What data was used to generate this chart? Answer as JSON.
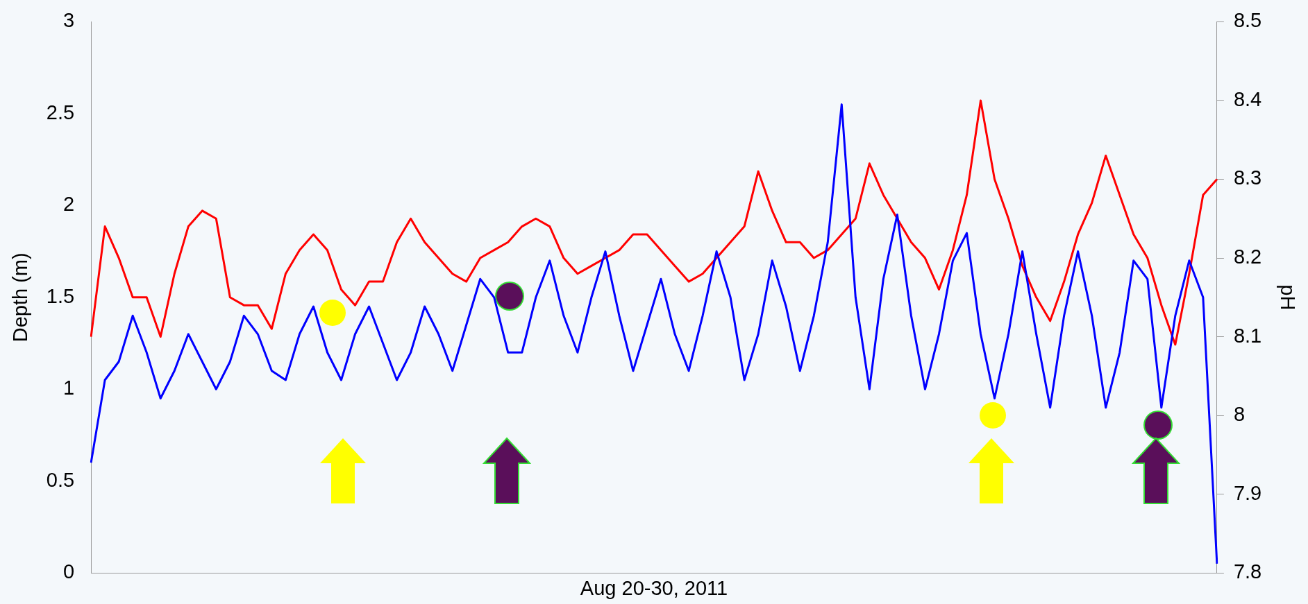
{
  "chart_data": {
    "type": "line",
    "xlabel": "Aug 20-30, 2011",
    "ylabel": "Depth (m)",
    "y2label": "pH",
    "categories": [
      null,
      null,
      null,
      null,
      null,
      null,
      null,
      null,
      null,
      null,
      null,
      null,
      null,
      null,
      null,
      null,
      null,
      null,
      null,
      null,
      null,
      null,
      null,
      null,
      null,
      null,
      null,
      null,
      null,
      null,
      null,
      null,
      null,
      null,
      null,
      null,
      null,
      null,
      null,
      null,
      null,
      null,
      null,
      null,
      null,
      null,
      null,
      null,
      null,
      null,
      null,
      null,
      null,
      null,
      null,
      null,
      null,
      null,
      null,
      null,
      null,
      null,
      null,
      null,
      null,
      null,
      null,
      null,
      null,
      null,
      null,
      null,
      null,
      null,
      null,
      null,
      null,
      null,
      null,
      null,
      null,
      null
    ],
    "series": [
      {
        "color": "#0000ff",
        "values": [
          0.6,
          1.05,
          1.15,
          1.4,
          1.2,
          0.95,
          1.1,
          1.3,
          1.15,
          1.0,
          1.15,
          1.4,
          1.3,
          1.1,
          1.05,
          1.3,
          1.45,
          1.2,
          1.05,
          1.3,
          1.45,
          1.25,
          1.05,
          1.2,
          1.45,
          1.3,
          1.1,
          1.35,
          1.6,
          1.5,
          1.2,
          1.2,
          1.5,
          1.7,
          1.4,
          1.2,
          1.5,
          1.75,
          1.4,
          1.1,
          1.35,
          1.6,
          1.3,
          1.1,
          1.4,
          1.75,
          1.5,
          1.05,
          1.3,
          1.7,
          1.45,
          1.1,
          1.4,
          1.8,
          2.55,
          1.5,
          1.0,
          1.6,
          1.95,
          1.4,
          1.0,
          1.3,
          1.7,
          1.85,
          1.3,
          0.95,
          1.3,
          1.75,
          1.3,
          0.9,
          1.4,
          1.75,
          1.4,
          0.9,
          1.2,
          1.7,
          1.6,
          0.9,
          1.4,
          1.7,
          1.5,
          0.05
        ]
      },
      {
        "color": "#ff0000",
        "axis": "y2",
        "values": [
          8.1,
          8.24,
          8.2,
          8.15,
          8.15,
          8.1,
          8.18,
          8.24,
          8.26,
          8.25,
          8.15,
          8.14,
          8.14,
          8.11,
          8.18,
          8.21,
          8.23,
          8.21,
          8.16,
          8.14,
          8.17,
          8.17,
          8.22,
          8.25,
          8.22,
          8.2,
          8.18,
          8.17,
          8.2,
          8.21,
          8.22,
          8.24,
          8.25,
          8.24,
          8.2,
          8.18,
          8.19,
          8.2,
          8.21,
          8.23,
          8.23,
          8.21,
          8.19,
          8.17,
          8.18,
          8.2,
          8.22,
          8.24,
          8.31,
          8.26,
          8.22,
          8.22,
          8.2,
          8.21,
          8.23,
          8.25,
          8.32,
          8.28,
          8.25,
          8.22,
          8.2,
          8.16,
          8.21,
          8.28,
          8.4,
          8.3,
          8.25,
          8.19,
          8.15,
          8.12,
          8.17,
          8.23,
          8.27,
          8.33,
          8.28,
          8.23,
          8.2,
          8.14,
          8.09,
          8.18,
          8.28,
          8.3
        ]
      }
    ],
    "ylim": [
      0,
      3
    ],
    "yticks": [
      0,
      0.5,
      1,
      1.5,
      2,
      2.5,
      3
    ],
    "y2lim": [
      7.8,
      8.5
    ],
    "y2ticks": [
      {
        "value": 7.8,
        "label": "7.8"
      },
      {
        "value": 7.9,
        "label": "7.9"
      },
      {
        "value": 8,
        "label": "8"
      },
      {
        "value": 8.1,
        "label": "8.1"
      },
      {
        "value": 8.2,
        "label": "8.2"
      },
      {
        "value": 8.3,
        "label": "8.3"
      },
      {
        "value": 8.4,
        "label": "8.4"
      },
      {
        "value": 8.5,
        "label": "8.5"
      }
    ],
    "grid": false,
    "marker": "none"
  }
}
